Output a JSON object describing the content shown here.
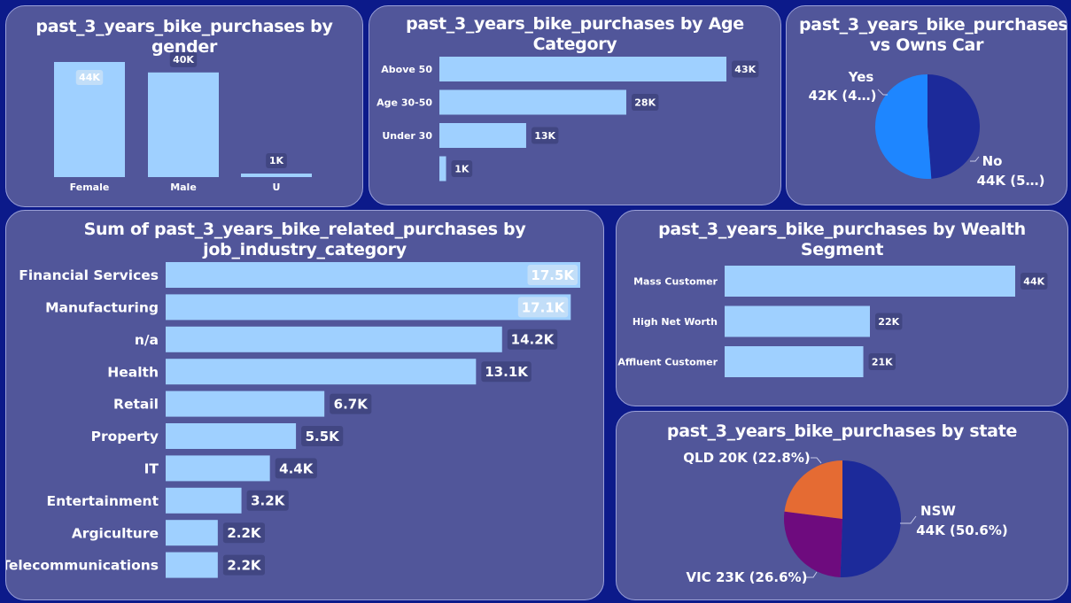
{
  "colors": {
    "page_bg": "#0c1a8a",
    "card_bg": "#51569a",
    "card_border": "#9aa0d8",
    "bar": "#9fd0ff",
    "label_bg": "#414682",
    "text": "#ffffff",
    "pie_dark": "#1c2a9a",
    "pie_blue": "#1e86ff",
    "pie_orange": "#e56b33",
    "pie_purple": "#6e0b7e"
  },
  "chart_data": [
    {
      "id": "gender",
      "type": "bar",
      "orientation": "vertical",
      "title": "past_3_years_bike_purchases by gender",
      "categories": [
        "Female",
        "Male",
        "U"
      ],
      "values": [
        44,
        40,
        1
      ],
      "labels": [
        "44K",
        "40K",
        "1K"
      ],
      "ylim": [
        0,
        44
      ]
    },
    {
      "id": "age",
      "type": "bar",
      "orientation": "horizontal",
      "title": "past_3_years_bike_purchases by Age Category",
      "categories": [
        "Above 50",
        "Age 30-50",
        "Under 30",
        ""
      ],
      "values": [
        43,
        28,
        13,
        1
      ],
      "labels": [
        "43K",
        "28K",
        "13K",
        "1K"
      ],
      "xlim": [
        0,
        43
      ]
    },
    {
      "id": "car",
      "type": "pie",
      "title": "past_3_years_bike_purchases vs Owns Car",
      "slices": [
        {
          "name": "Yes",
          "value": 42,
          "label": "42K (4…)",
          "color": "#1c2a9a"
        },
        {
          "name": "No",
          "value": 44,
          "label": "44K (5…)",
          "color": "#1e86ff"
        }
      ]
    },
    {
      "id": "job",
      "type": "bar",
      "orientation": "horizontal",
      "title": "Sum of past_3_years_bike_related_purchases by job_industry_category",
      "categories": [
        "Financial Services",
        "Manufacturing",
        "n/a",
        "Health",
        "Retail",
        "Property",
        "IT",
        "Entertainment",
        "Argiculture",
        "Telecommunications"
      ],
      "values": [
        17.5,
        17.1,
        14.2,
        13.1,
        6.7,
        5.5,
        4.4,
        3.2,
        2.2,
        2.2
      ],
      "labels": [
        "17.5K",
        "17.1K",
        "14.2K",
        "13.1K",
        "6.7K",
        "5.5K",
        "4.4K",
        "3.2K",
        "2.2K",
        "2.2K"
      ],
      "xlim": [
        0,
        17.5
      ]
    },
    {
      "id": "wealth",
      "type": "bar",
      "orientation": "horizontal",
      "title": "past_3_years_bike_purchases by Wealth Segment",
      "categories": [
        "Mass Customer",
        "High Net Worth",
        "Affluent Customer"
      ],
      "values": [
        44,
        22,
        21
      ],
      "labels": [
        "44K",
        "22K",
        "21K"
      ],
      "xlim": [
        0,
        44
      ]
    },
    {
      "id": "state",
      "type": "pie",
      "title": "past_3_years_bike_purchases by state",
      "slices": [
        {
          "name": "NSW",
          "value": 44,
          "percent": 50.6,
          "label": "44K (50.6%)",
          "color": "#1c2a9a"
        },
        {
          "name": "VIC",
          "value": 23,
          "percent": 26.6,
          "label": "VIC 23K (26.6%)",
          "color": "#6e0b7e"
        },
        {
          "name": "QLD",
          "value": 20,
          "percent": 22.8,
          "label": "QLD 20K (22.8%)",
          "color": "#e56b33"
        }
      ]
    }
  ]
}
